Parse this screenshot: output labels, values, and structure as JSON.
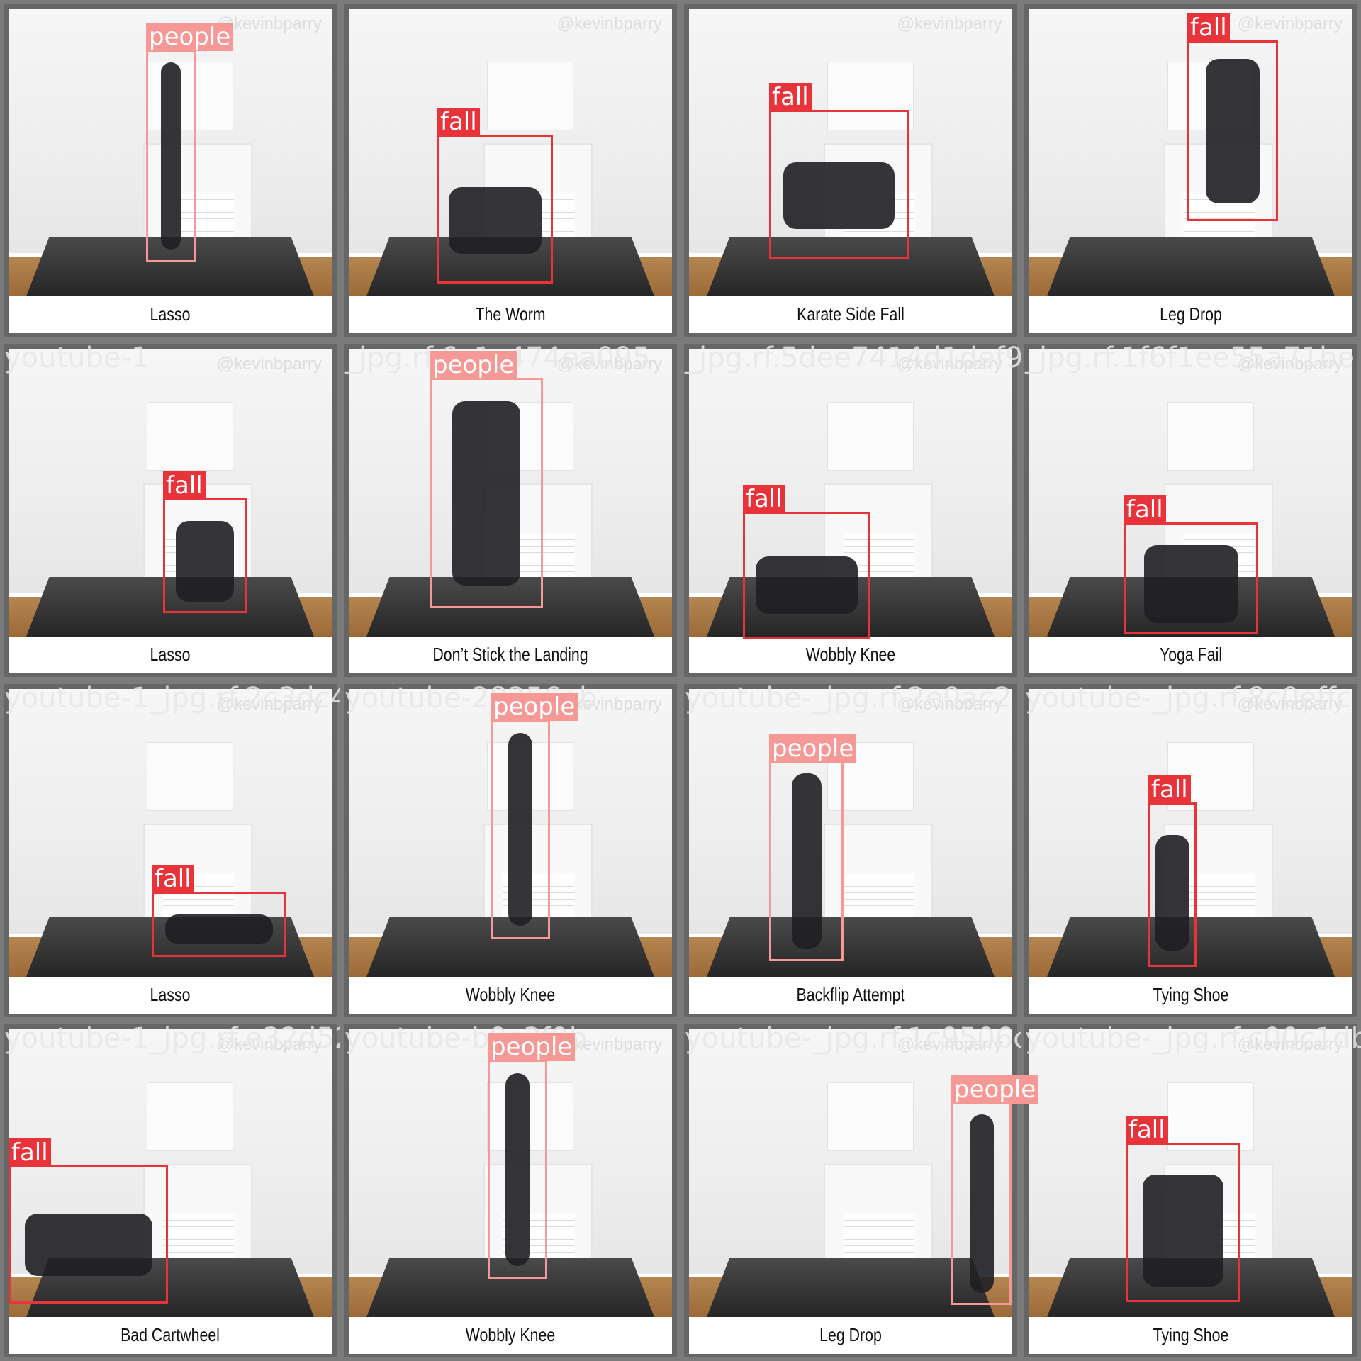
{
  "colors": {
    "fall": "#e8333a",
    "people": "#f59896",
    "tile_border": "#666666",
    "background": "#7b7b7b"
  },
  "tiles": [
    {
      "caption": "Lasso",
      "watermark": "@kevinbparry",
      "filename": "",
      "box": {
        "label": "people"
      }
    },
    {
      "caption": "The Worm",
      "watermark": "@kevinbparry",
      "filename": "",
      "box": {
        "label": "fall"
      }
    },
    {
      "caption": "Karate Side Fall",
      "watermark": "@kevinbparry",
      "filename": "",
      "box": {
        "label": "fall"
      }
    },
    {
      "caption": "Leg Drop",
      "watermark": "@kevinbparry",
      "filename": "",
      "box": {
        "label": "fall"
      }
    },
    {
      "caption": "Lasso",
      "watermark": "@kevinbparry",
      "filename": "youtube-1",
      "box": {
        "label": "fall"
      }
    },
    {
      "caption": "Don’t Stick the Landing",
      "watermark": "@kevinbparry",
      "filename": "_jpg.rf.6c1c474ea095",
      "box": {
        "label": "people"
      }
    },
    {
      "caption": "Wobbly Knee",
      "watermark": "@kevinbparry",
      "filename": "_jpg.rf.5dee7414d1def9",
      "box": {
        "label": "fall"
      }
    },
    {
      "caption": "Yoga Fail",
      "watermark": "@kevinbparry",
      "filename": "_jpg.rf.1f6f1ee55a71be",
      "box": {
        "label": "fall"
      }
    },
    {
      "caption": "Lasso",
      "watermark": "@kevinbparry",
      "filename": "youtube-1_jpg.rf.2c3dc4d",
      "box": {
        "label": "fall"
      }
    },
    {
      "caption": "Wobbly Knee",
      "watermark": "@kevinbparry",
      "filename": "youtube-28256eb",
      "box": {
        "label": "people"
      }
    },
    {
      "caption": "Backflip Attempt",
      "watermark": "@kevinbparry",
      "filename": "youtube-_jpg.rf.2e0ac2",
      "box": {
        "label": "people"
      }
    },
    {
      "caption": "Tying Shoe",
      "watermark": "@kevinbparry",
      "filename": "youtube-_jpg.rf.8c0effc",
      "box": {
        "label": "fall"
      }
    },
    {
      "caption": "Bad Cartwheel",
      "watermark": "@kevinbparry",
      "filename": "youtube-1_jpg.rf.e32d52b",
      "box": {
        "label": "fall"
      }
    },
    {
      "caption": "Wobbly Knee",
      "watermark": "@kevinbparry",
      "filename": "youtube-b9c3f9b",
      "box": {
        "label": "people"
      }
    },
    {
      "caption": "Leg Drop",
      "watermark": "@kevinbparry",
      "filename": "youtube-_jpg.rf.1c9506c",
      "box": {
        "label": "people"
      }
    },
    {
      "caption": "Tying Shoe",
      "watermark": "@kevinbparry",
      "filename": "youtube-_jpg.rf.c00c1db",
      "box": {
        "label": "fall"
      }
    }
  ]
}
